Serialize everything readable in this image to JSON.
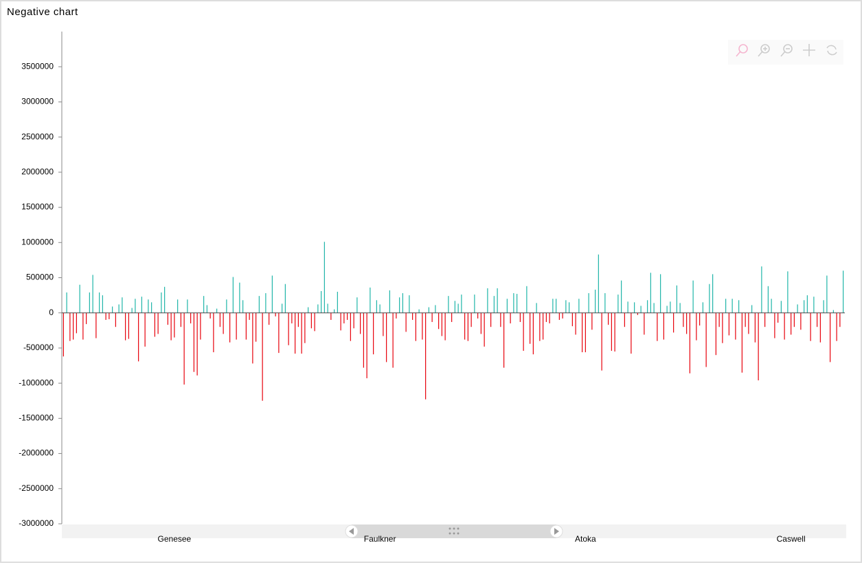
{
  "chart_data": {
    "type": "bar",
    "title": "Negative chart",
    "categories": [
      null,
      null,
      null,
      null,
      null,
      null,
      null,
      null,
      null,
      null,
      null,
      null,
      null,
      null,
      null,
      null,
      null,
      null,
      null,
      null,
      null,
      null,
      null,
      null,
      null,
      null,
      null,
      null,
      null,
      null,
      null,
      null,
      null,
      null,
      "Genesee",
      null,
      null,
      null,
      null,
      null,
      null,
      null,
      null,
      null,
      null,
      null,
      null,
      null,
      null,
      null,
      null,
      null,
      null,
      null,
      null,
      null,
      null,
      null,
      null,
      null,
      null,
      null,
      null,
      null,
      null,
      null,
      null,
      null,
      null,
      null,
      null,
      null,
      null,
      null,
      null,
      null,
      null,
      null,
      null,
      null,
      null,
      null,
      null,
      null,
      null,
      null,
      null,
      null,
      null,
      null,
      null,
      null,
      null,
      null,
      null,
      null,
      null,
      "Faulkner",
      null,
      null,
      null,
      null,
      null,
      null,
      null,
      null,
      null,
      null,
      null,
      null,
      null,
      null,
      null,
      null,
      null,
      null,
      null,
      null,
      null,
      null,
      null,
      null,
      null,
      null,
      null,
      null,
      null,
      null,
      null,
      null,
      null,
      null,
      null,
      null,
      null,
      null,
      null,
      null,
      null,
      null,
      null,
      null,
      null,
      null,
      null,
      null,
      null,
      null,
      null,
      null,
      null,
      null,
      null,
      null,
      null,
      null,
      null,
      null,
      null,
      null,
      "Atoka",
      null,
      null,
      null,
      null,
      null,
      null,
      null,
      null,
      null,
      null,
      null,
      null,
      null,
      null,
      null,
      null,
      null,
      null,
      null,
      null,
      null,
      null,
      null,
      null,
      null,
      null,
      null,
      null,
      null,
      null,
      null,
      null,
      null,
      null,
      null,
      null,
      null,
      null,
      null,
      null,
      null,
      null,
      null,
      null,
      null,
      null,
      null,
      null,
      null,
      null,
      null,
      null,
      null,
      null,
      null,
      null,
      null,
      null,
      null,
      null,
      null,
      null,
      "Caswell",
      null,
      null,
      null,
      null,
      null,
      null,
      null,
      null,
      null,
      null,
      null,
      null,
      null,
      null,
      null,
      null
    ],
    "values": [
      -620000,
      290000,
      -400000,
      -380000,
      -290000,
      400000,
      -380000,
      -160000,
      290000,
      540000,
      -360000,
      290000,
      250000,
      -100000,
      -90000,
      90000,
      -200000,
      120000,
      220000,
      -390000,
      -370000,
      70000,
      200000,
      -690000,
      230000,
      -480000,
      190000,
      150000,
      -340000,
      -300000,
      290000,
      370000,
      -170000,
      -390000,
      -350000,
      190000,
      -200000,
      -1020000,
      190000,
      -150000,
      -840000,
      -890000,
      -380000,
      240000,
      110000,
      -80000,
      -560000,
      60000,
      -200000,
      -300000,
      190000,
      -420000,
      510000,
      -380000,
      430000,
      180000,
      -380000,
      -100000,
      -720000,
      -410000,
      240000,
      -1250000,
      280000,
      -170000,
      530000,
      -50000,
      -570000,
      130000,
      410000,
      -460000,
      -150000,
      -580000,
      -200000,
      -580000,
      -430000,
      80000,
      -220000,
      -260000,
      120000,
      310000,
      1010000,
      130000,
      -100000,
      50000,
      300000,
      -250000,
      -150000,
      -100000,
      -400000,
      -220000,
      220000,
      -300000,
      -780000,
      -930000,
      360000,
      -590000,
      180000,
      120000,
      -330000,
      -700000,
      320000,
      -780000,
      -80000,
      220000,
      280000,
      -270000,
      250000,
      -100000,
      -400000,
      50000,
      -380000,
      -1230000,
      80000,
      -130000,
      110000,
      -230000,
      -330000,
      -390000,
      240000,
      -130000,
      170000,
      130000,
      260000,
      -380000,
      -400000,
      -200000,
      260000,
      -80000,
      -300000,
      -480000,
      350000,
      -200000,
      240000,
      350000,
      -200000,
      -780000,
      200000,
      -150000,
      280000,
      270000,
      -130000,
      -540000,
      380000,
      -440000,
      -590000,
      140000,
      -400000,
      -380000,
      -130000,
      -150000,
      200000,
      200000,
      -100000,
      -80000,
      180000,
      150000,
      -190000,
      -310000,
      200000,
      -560000,
      -560000,
      280000,
      -240000,
      330000,
      830000,
      -820000,
      280000,
      -170000,
      -540000,
      -550000,
      260000,
      460000,
      -200000,
      160000,
      -580000,
      150000,
      -30000,
      100000,
      -310000,
      180000,
      570000,
      140000,
      -400000,
      550000,
      -380000,
      100000,
      160000,
      -280000,
      390000,
      140000,
      -200000,
      -300000,
      -860000,
      460000,
      -390000,
      -180000,
      150000,
      -770000,
      410000,
      550000,
      -600000,
      -200000,
      -430000,
      200000,
      -320000,
      200000,
      -380000,
      180000,
      -850000,
      -200000,
      -300000,
      110000,
      -420000,
      -960000,
      660000,
      -200000,
      380000,
      200000,
      -360000,
      -140000,
      170000,
      -380000,
      590000,
      -310000,
      -200000,
      120000,
      -240000,
      180000,
      250000,
      -400000,
      230000,
      -200000,
      -420000,
      180000,
      530000,
      -700000,
      40000,
      -400000,
      -200000,
      600000
    ],
    "positive_color": "#1fb5a8",
    "negative_color": "#e8000b",
    "ylim": [
      -3000000,
      4000000
    ],
    "yticks": [
      -3000000,
      -2500000,
      -2000000,
      -1500000,
      -1000000,
      -500000,
      0,
      500000,
      1000000,
      1500000,
      2000000,
      2500000,
      3000000,
      3500000
    ]
  }
}
